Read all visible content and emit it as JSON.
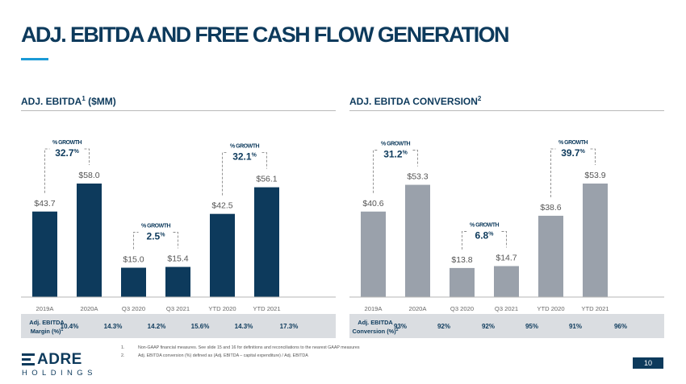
{
  "page": {
    "title": "ADJ. EBITDA AND FREE CASH FLOW GENERATION",
    "page_number": "10",
    "footnotes": [
      {
        "num": "1.",
        "text": "Non-GAAP financial measures. See slide 15 and 16 for definitions and reconciliations to the nearest GAAP measures"
      },
      {
        "num": "2.",
        "text": "Adj. EBITDA conversion (%) defined as (Adj. EBITDA – capital expenditure) / Adj. EBITDA"
      }
    ],
    "logo": {
      "main": "ADRE",
      "sub": "HOLDINGS"
    }
  },
  "colors": {
    "title": "#0d3a5c",
    "accent": "#1b9ad6",
    "left_bars": "#0d3a5c",
    "right_bars": "#9aa1ab",
    "table_band": "#dadde1"
  },
  "chart_data": [
    {
      "type": "bar",
      "section_title": "ADJ. EBITDA",
      "section_title_sup": "1",
      "section_title_suffix": " ($MM)",
      "categories": [
        "2019A",
        "2020A",
        "Q3 2020",
        "Q3 2021",
        "YTD 2020",
        "YTD 2021"
      ],
      "values": [
        43.7,
        58.0,
        15.0,
        15.4,
        42.5,
        56.1
      ],
      "value_labels": [
        "$43.7",
        "$58.0",
        "$15.0",
        "$15.4",
        "$42.5",
        "$56.1"
      ],
      "ylim": [
        0,
        65
      ],
      "growth": [
        {
          "from": 0,
          "to": 1,
          "label": "% GROWTH",
          "value": "32.7",
          "unit": "%"
        },
        {
          "from": 2,
          "to": 3,
          "label": "% GROWTH",
          "value": "2.5",
          "unit": "%"
        },
        {
          "from": 4,
          "to": 5,
          "label": "% GROWTH",
          "value": "32.1",
          "unit": "%"
        }
      ],
      "table": {
        "label_line1": "Adj. EBITDA",
        "label_line2": "Margin (%)",
        "label_sup": "1",
        "values": [
          "10.4%",
          "14.3%",
          "14.2%",
          "15.6%",
          "14.3%",
          "17.3%"
        ]
      }
    },
    {
      "type": "bar",
      "section_title": "ADJ. EBITDA CONVERSION",
      "section_title_sup": "2",
      "section_title_suffix": "",
      "categories": [
        "2019A",
        "2020A",
        "Q3 2020",
        "Q3 2021",
        "YTD 2020",
        "YTD 2021"
      ],
      "values": [
        40.6,
        53.3,
        13.8,
        14.7,
        38.6,
        53.9
      ],
      "value_labels": [
        "$40.6",
        "$53.3",
        "$13.8",
        "$14.7",
        "$38.6",
        "$53.9"
      ],
      "ylim": [
        0,
        60
      ],
      "growth": [
        {
          "from": 0,
          "to": 1,
          "label": "% GROWTH",
          "value": "31.2",
          "unit": "%"
        },
        {
          "from": 2,
          "to": 3,
          "label": "% GROWTH",
          "value": "6.8",
          "unit": "%"
        },
        {
          "from": 4,
          "to": 5,
          "label": "% GROWTH",
          "value": "39.7",
          "unit": "%"
        }
      ],
      "table": {
        "label_line1": "Adj. EBITDA",
        "label_line2": "Conversion (%)",
        "label_sup": "2",
        "values": [
          "93%",
          "92%",
          "92%",
          "95%",
          "91%",
          "96%"
        ]
      }
    }
  ]
}
